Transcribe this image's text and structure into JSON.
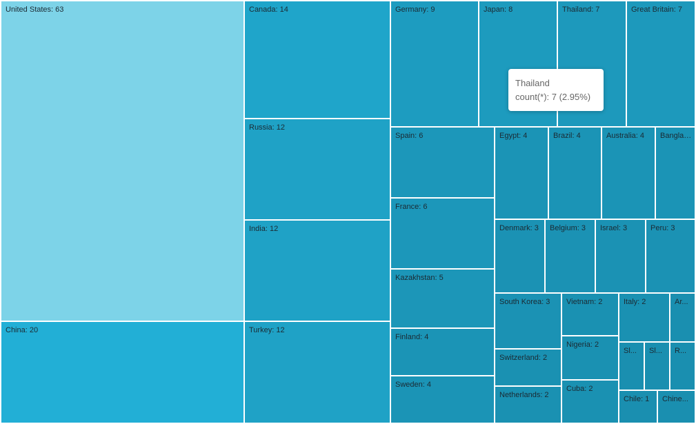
{
  "chart_data": {
    "type": "treemap",
    "metric": "count(*)",
    "items": [
      {
        "name": "United States",
        "value": 63
      },
      {
        "name": "China",
        "value": 20
      },
      {
        "name": "Canada",
        "value": 14
      },
      {
        "name": "Russia",
        "value": 12
      },
      {
        "name": "India",
        "value": 12
      },
      {
        "name": "Turkey",
        "value": 12
      },
      {
        "name": "Germany",
        "value": 9
      },
      {
        "name": "Japan",
        "value": 8
      },
      {
        "name": "Thailand",
        "value": 7
      },
      {
        "name": "Great Britain",
        "value": 7
      },
      {
        "name": "Spain",
        "value": 6
      },
      {
        "name": "France",
        "value": 6
      },
      {
        "name": "Kazakhstan",
        "value": 5
      },
      {
        "name": "Finland",
        "value": 4
      },
      {
        "name": "Sweden",
        "value": 4
      },
      {
        "name": "Egypt",
        "value": 4
      },
      {
        "name": "Brazil",
        "value": 4
      },
      {
        "name": "Australia",
        "value": 4
      },
      {
        "name": "Bangla...",
        "value": 4
      },
      {
        "name": "Denmark",
        "value": 3
      },
      {
        "name": "Belgium",
        "value": 3
      },
      {
        "name": "Israel",
        "value": 3
      },
      {
        "name": "Peru",
        "value": 3
      },
      {
        "name": "South Korea",
        "value": 3
      },
      {
        "name": "Switzerland",
        "value": 2
      },
      {
        "name": "Netherlands",
        "value": 2
      },
      {
        "name": "Vietnam",
        "value": 2
      },
      {
        "name": "Nigeria",
        "value": 2
      },
      {
        "name": "Cuba",
        "value": 2
      },
      {
        "name": "Italy",
        "value": 2
      },
      {
        "name": "Ar...",
        "value": null
      },
      {
        "name": "Sl...",
        "value": null
      },
      {
        "name": "Sl...",
        "value": null
      },
      {
        "name": "R...",
        "value": null
      },
      {
        "name": "Chile",
        "value": 1
      },
      {
        "name": "Chine...",
        "value": null
      }
    ],
    "colors": {
      "light": "#7dd3e8",
      "mid": "#22afd6",
      "dark": "#1a8fb0"
    }
  },
  "tooltip": {
    "title": "Thailand",
    "line": "count(*): 7 (2.95%)"
  }
}
